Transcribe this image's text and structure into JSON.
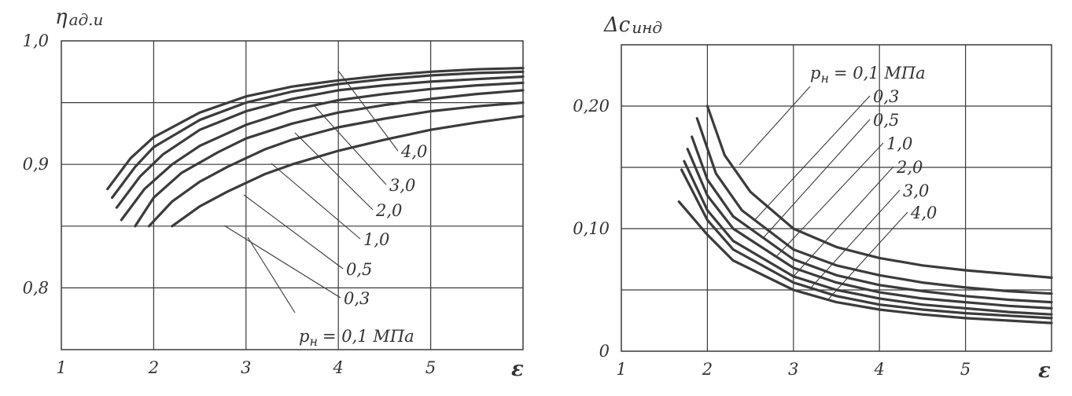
{
  "chart_data": [
    {
      "type": "line",
      "ylabel": "η",
      "ylabel_sub": "ад.и",
      "xlabel": "ε",
      "xlim": [
        1,
        6
      ],
      "ylim": [
        0.75,
        1.0
      ],
      "x_ticks": [
        "1",
        "2",
        "3",
        "4",
        "5"
      ],
      "y_ticks": [
        "0,8",
        "0,9",
        "1,0"
      ],
      "grid": true,
      "series": [
        {
          "name": "4,0",
          "x": [
            1.5,
            1.75,
            2,
            2.5,
            3,
            3.5,
            4,
            4.5,
            5,
            5.5,
            6
          ],
          "y": [
            0.88,
            0.905,
            0.922,
            0.942,
            0.955,
            0.963,
            0.968,
            0.972,
            0.975,
            0.977,
            0.978
          ]
        },
        {
          "name": "3,0",
          "x": [
            1.55,
            1.8,
            2,
            2.5,
            3,
            3.5,
            4,
            4.5,
            5,
            5.5,
            6
          ],
          "y": [
            0.873,
            0.898,
            0.914,
            0.936,
            0.95,
            0.959,
            0.965,
            0.969,
            0.972,
            0.974,
            0.975
          ]
        },
        {
          "name": "2,0",
          "x": [
            1.6,
            1.85,
            2.1,
            2.5,
            3,
            3.5,
            4,
            4.5,
            5,
            5.5,
            6
          ],
          "y": [
            0.865,
            0.89,
            0.908,
            0.928,
            0.943,
            0.953,
            0.96,
            0.964,
            0.967,
            0.969,
            0.971
          ]
        },
        {
          "name": "1,0",
          "x": [
            1.65,
            1.9,
            2.2,
            2.5,
            3,
            3.5,
            4,
            4.5,
            5,
            5.5,
            6
          ],
          "y": [
            0.855,
            0.88,
            0.9,
            0.915,
            0.932,
            0.944,
            0.952,
            0.957,
            0.961,
            0.964,
            0.966
          ]
        },
        {
          "name": "0,5",
          "x": [
            1.8,
            2,
            2.3,
            2.7,
            3,
            3.5,
            4,
            4.5,
            5,
            5.5,
            6
          ],
          "y": [
            0.85,
            0.873,
            0.893,
            0.91,
            0.921,
            0.933,
            0.942,
            0.948,
            0.953,
            0.957,
            0.96
          ]
        },
        {
          "name": "0,3",
          "x": [
            1.95,
            2.2,
            2.5,
            2.8,
            3.2,
            3.5,
            4,
            4.5,
            5,
            5.5,
            6
          ],
          "y": [
            0.85,
            0.87,
            0.886,
            0.898,
            0.912,
            0.92,
            0.93,
            0.937,
            0.943,
            0.947,
            0.95
          ]
        },
        {
          "name": "0,1",
          "x": [
            2.2,
            2.5,
            2.8,
            3.2,
            3.5,
            4,
            4.5,
            5,
            5.5,
            6
          ],
          "y": [
            0.85,
            0.866,
            0.878,
            0.892,
            0.9,
            0.911,
            0.92,
            0.928,
            0.934,
            0.939
          ]
        }
      ],
      "curve_labels": [
        "4,0",
        "3,0",
        "2,0",
        "1,0",
        "0,5",
        "0,3"
      ],
      "pressure_label": {
        "symbol": "p",
        "sub": "н",
        "text": "= 0,1 МПа"
      }
    },
    {
      "type": "line",
      "ylabel": "Δc",
      "ylabel_sub": "инд",
      "xlabel": "ε",
      "xlim": [
        1,
        6
      ],
      "ylim": [
        0,
        0.25
      ],
      "x_ticks": [
        "1",
        "2",
        "3",
        "4",
        "5"
      ],
      "y_ticks": [
        "0",
        "0,10",
        "0,20"
      ],
      "grid": true,
      "series": [
        {
          "name": "0,1",
          "x": [
            2,
            2.2,
            2.5,
            3,
            3.5,
            4,
            4.5,
            5,
            5.5,
            6
          ],
          "y": [
            0.2,
            0.16,
            0.13,
            0.1,
            0.085,
            0.076,
            0.07,
            0.066,
            0.063,
            0.06
          ]
        },
        {
          "name": "0,3",
          "x": [
            1.88,
            2.1,
            2.4,
            3,
            3.5,
            4,
            4.5,
            5,
            5.5,
            6
          ],
          "y": [
            0.19,
            0.145,
            0.115,
            0.083,
            0.07,
            0.062,
            0.056,
            0.052,
            0.049,
            0.047
          ]
        },
        {
          "name": "0,5",
          "x": [
            1.82,
            2,
            2.3,
            3,
            3.5,
            4,
            4.5,
            5,
            5.5,
            6
          ],
          "y": [
            0.175,
            0.14,
            0.11,
            0.075,
            0.062,
            0.054,
            0.049,
            0.045,
            0.042,
            0.04
          ]
        },
        {
          "name": "1,0",
          "x": [
            1.77,
            2,
            2.3,
            3,
            3.5,
            4,
            4.5,
            5,
            5.5,
            6
          ],
          "y": [
            0.165,
            0.127,
            0.1,
            0.068,
            0.056,
            0.048,
            0.043,
            0.04,
            0.037,
            0.035
          ]
        },
        {
          "name": "2,0",
          "x": [
            1.73,
            2,
            2.3,
            3,
            3.5,
            4,
            4.5,
            5,
            5.5,
            6
          ],
          "y": [
            0.155,
            0.115,
            0.09,
            0.061,
            0.05,
            0.043,
            0.038,
            0.035,
            0.032,
            0.03
          ]
        },
        {
          "name": "3,0",
          "x": [
            1.7,
            2,
            2.3,
            3,
            3.5,
            4,
            4.5,
            5,
            5.5,
            6
          ],
          "y": [
            0.148,
            0.107,
            0.083,
            0.056,
            0.045,
            0.038,
            0.034,
            0.031,
            0.029,
            0.027
          ]
        },
        {
          "name": "4,0",
          "x": [
            1.67,
            2,
            2.3,
            3,
            3.5,
            4,
            4.5,
            5,
            5.5,
            6
          ],
          "y": [
            0.122,
            0.095,
            0.074,
            0.05,
            0.04,
            0.034,
            0.03,
            0.027,
            0.025,
            0.023
          ]
        }
      ],
      "curve_labels": [
        "0,3",
        "0,5",
        "1,0",
        "2,0",
        "3,0",
        "4,0"
      ],
      "pressure_label": {
        "symbol": "p",
        "sub": "н",
        "text": "= 0,1 МПа"
      }
    }
  ]
}
